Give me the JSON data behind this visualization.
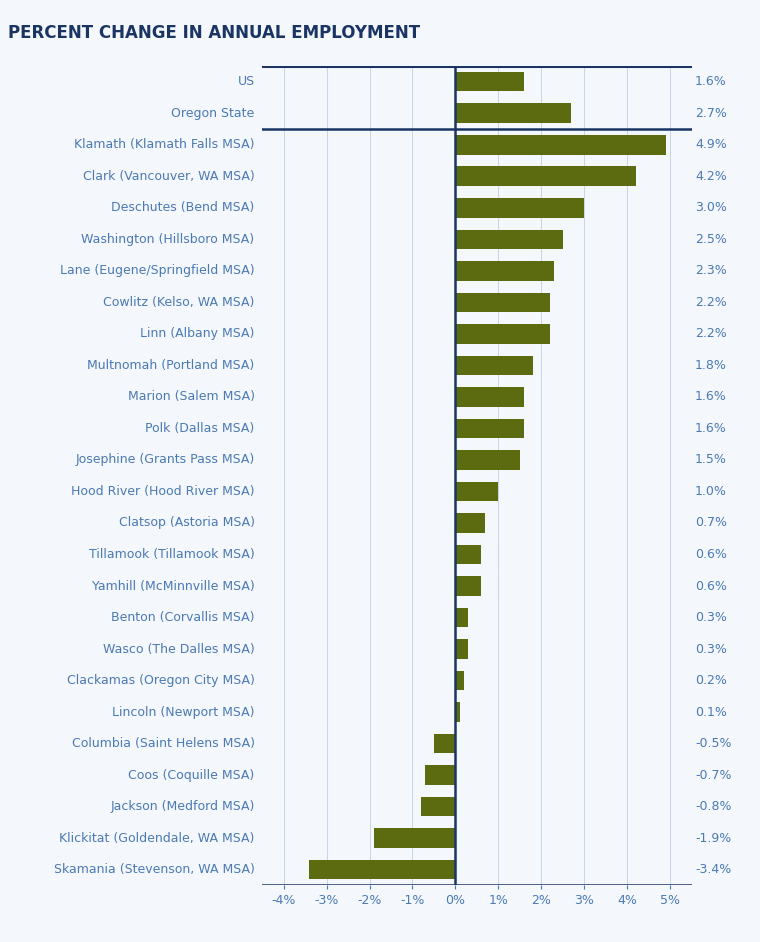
{
  "title": "PERCENT CHANGE IN ANNUAL EMPLOYMENT",
  "categories": [
    "US",
    "Oregon State",
    "Klamath (Klamath Falls MSA)",
    "Clark (Vancouver, WA MSA)",
    "Deschutes (Bend MSA)",
    "Washington (Hillsboro MSA)",
    "Lane (Eugene/Springfield MSA)",
    "Cowlitz (Kelso, WA MSA)",
    "Linn (Albany MSA)",
    "Multnomah (Portland MSA)",
    "Marion (Salem MSA)",
    "Polk (Dallas MSA)",
    "Josephine (Grants Pass MSA)",
    "Hood River (Hood River MSA)",
    "Clatsop (Astoria MSA)",
    "Tillamook (Tillamook MSA)",
    "Yamhill (McMinnville MSA)",
    "Benton (Corvallis MSA)",
    "Wasco (The Dalles MSA)",
    "Clackamas (Oregon City MSA)",
    "Lincoln (Newport MSA)",
    "Columbia (Saint Helens MSA)",
    "Coos (Coquille MSA)",
    "Jackson (Medford MSA)",
    "Klickitat (Goldendale, WA MSA)",
    "Skamania (Stevenson, WA MSA)"
  ],
  "values": [
    1.6,
    2.7,
    4.9,
    4.2,
    3.0,
    2.5,
    2.3,
    2.2,
    2.2,
    1.8,
    1.6,
    1.6,
    1.5,
    1.0,
    0.7,
    0.6,
    0.6,
    0.3,
    0.3,
    0.2,
    0.1,
    -0.5,
    -0.7,
    -0.8,
    -1.9,
    -3.4
  ],
  "labels": [
    "1.6%",
    "2.7%",
    "4.9%",
    "4.2%",
    "3.0%",
    "2.5%",
    "2.3%",
    "2.2%",
    "2.2%",
    "1.8%",
    "1.6%",
    "1.6%",
    "1.5%",
    "1.0%",
    "0.7%",
    "0.6%",
    "0.6%",
    "0.3%",
    "0.3%",
    "0.2%",
    "0.1%",
    "-0.5%",
    "-0.7%",
    "-0.8%",
    "-1.9%",
    "-3.4%"
  ],
  "bar_color": "#5c6b10",
  "title_color": "#1a3564",
  "label_color": "#4a7ab5",
  "zero_line_color": "#1a3564",
  "separator_color": "#1a3564",
  "grid_color": "#c5d5e8",
  "bg_color": "#f4f7fb",
  "xlim": [
    -4.5,
    5.5
  ],
  "xticks": [
    -4,
    -3,
    -2,
    -1,
    0,
    1,
    2,
    3,
    4,
    5
  ],
  "xtick_labels": [
    "-4%",
    "-3%",
    "-2%",
    "-1%",
    "0%",
    "1%",
    "2%",
    "3%",
    "4%",
    "5%"
  ],
  "separator_after_idx": 1,
  "title_fontsize": 12,
  "label_fontsize": 9,
  "value_fontsize": 9
}
